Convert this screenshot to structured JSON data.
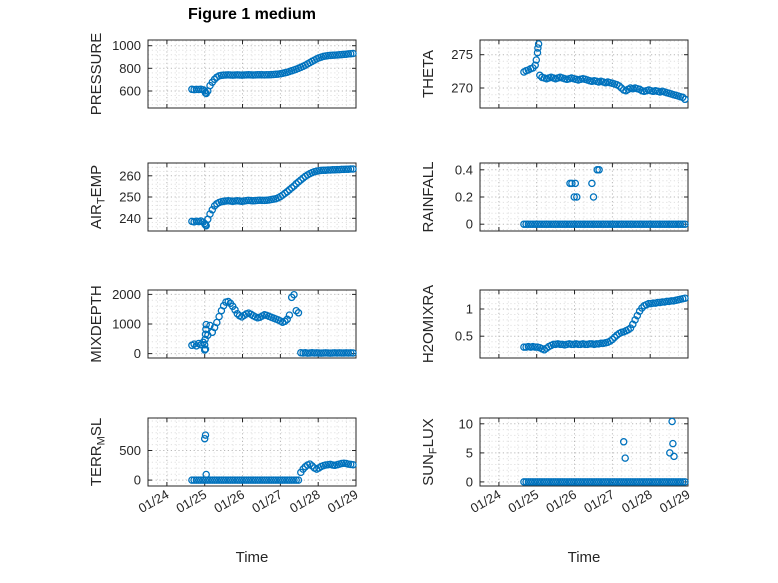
{
  "figure": {
    "title": "Figure 1 medium",
    "xlabel": "Time",
    "marker_color": "#0072BD",
    "axis_color": "#262626",
    "grid_color": "#b8b8b8",
    "minor_grid_color": "#e0e0e0"
  },
  "chart_data": {
    "type": "scatter",
    "marker": "open-circle",
    "x_axis": {
      "label": "Time",
      "xlim": [
        23.5,
        29.0
      ],
      "xticks": [
        24,
        25,
        26,
        27,
        28,
        29
      ],
      "xtick_labels": [
        "01/24",
        "01/25",
        "01/26",
        "01/27",
        "01/28",
        "01/29"
      ],
      "minor_x_step": 0.25
    },
    "x_shared": [
      24.66,
      24.72,
      24.78,
      24.84,
      24.9,
      24.96,
      25.02,
      25.08,
      25.14,
      25.2,
      25.26,
      25.32,
      25.38,
      25.44,
      25.5,
      25.56,
      25.62,
      25.68,
      25.74,
      25.8,
      25.86,
      25.92,
      25.98,
      26.04,
      26.1,
      26.16,
      26.22,
      26.28,
      26.34,
      26.4,
      26.46,
      26.52,
      26.58,
      26.64,
      26.7,
      26.76,
      26.82,
      26.88,
      26.94,
      27.0,
      27.06,
      27.12,
      27.18,
      27.24,
      27.3,
      27.36,
      27.42,
      27.48,
      27.54,
      27.6,
      27.66,
      27.72,
      27.78,
      27.84,
      27.9,
      27.96,
      28.02,
      28.08,
      28.14,
      28.2,
      28.26,
      28.32,
      28.38,
      28.44,
      28.5,
      28.56,
      28.62,
      28.68,
      28.74,
      28.8,
      28.86,
      28.92
    ],
    "subplots": [
      {
        "name": "PRESSURE",
        "ylabel_parts": [
          {
            "t": "PRESSURE"
          }
        ],
        "ylim": [
          450,
          1050
        ],
        "yticks": [
          600,
          800,
          1000
        ],
        "ytick_labels": [
          "600",
          "800",
          "1000"
        ],
        "minor_y_step": 40,
        "show_x_ticks": false,
        "y": [
          615,
          612,
          614,
          613,
          615,
          610,
          583,
          600,
          648,
          678,
          703,
          722,
          733,
          738,
          740,
          741,
          742,
          741,
          740,
          741,
          742,
          741,
          740,
          741,
          742,
          743,
          742,
          741,
          742,
          743,
          744,
          743,
          742,
          743,
          744,
          745,
          746,
          747,
          749,
          752,
          756,
          761,
          766,
          772,
          778,
          785,
          792,
          800,
          809,
          818,
          828,
          839,
          851,
          862,
          873,
          883,
          892,
          899,
          905,
          909,
          912,
          914,
          916,
          917,
          918,
          920,
          921,
          923,
          925,
          927,
          929,
          931
        ],
        "extra_points": [
          [
            25.0,
            600
          ],
          [
            25.04,
            578
          ]
        ]
      },
      {
        "name": "THETA",
        "ylabel_parts": [
          {
            "t": "THETA"
          }
        ],
        "ylim": [
          267,
          277.2
        ],
        "yticks": [
          270,
          275
        ],
        "ytick_labels": [
          "270",
          "275"
        ],
        "minor_y_step": 1,
        "show_x_ticks": false,
        "y": [
          272.4,
          272.6,
          272.7,
          272.9,
          273.0,
          273.4,
          275.3,
          271.9,
          271.6,
          271.5,
          271.4,
          271.5,
          271.6,
          271.5,
          271.4,
          271.5,
          271.6,
          271.5,
          271.4,
          271.3,
          271.4,
          271.5,
          271.4,
          271.3,
          271.2,
          271.3,
          271.4,
          271.3,
          271.2,
          271.1,
          271.0,
          271.1,
          271.0,
          270.9,
          271.0,
          270.9,
          270.8,
          270.9,
          270.8,
          270.7,
          270.6,
          270.5,
          270.3,
          270.0,
          269.7,
          269.6,
          269.8,
          270.0,
          269.9,
          270.0,
          269.9,
          269.8,
          269.6,
          269.5,
          269.6,
          269.7,
          269.6,
          269.5,
          269.6,
          269.5,
          269.4,
          269.5,
          269.4,
          269.3,
          269.2,
          269.1,
          269.0,
          268.9,
          268.8,
          268.7,
          268.6,
          268.3
        ],
        "extra_points": [
          [
            24.99,
            274.2
          ],
          [
            25.03,
            276.0
          ],
          [
            25.05,
            276.6
          ]
        ]
      },
      {
        "name": "AIR_TEMP",
        "ylabel_parts": [
          {
            "t": "AIR"
          },
          {
            "t": "T",
            "sub": true
          },
          {
            "t": "EMP"
          }
        ],
        "ylim": [
          234,
          266
        ],
        "yticks": [
          240,
          250,
          260
        ],
        "ytick_labels": [
          "240",
          "250",
          "260"
        ],
        "minor_y_step": 2,
        "show_x_ticks": false,
        "y": [
          238.5,
          238.3,
          238.6,
          238.4,
          238.7,
          238.2,
          236.8,
          239.5,
          242.0,
          244.0,
          245.8,
          246.8,
          247.4,
          247.8,
          248.0,
          248.1,
          248.2,
          248.1,
          248.0,
          248.1,
          248.2,
          248.1,
          248.0,
          248.1,
          248.3,
          248.4,
          248.3,
          248.2,
          248.3,
          248.4,
          248.5,
          248.4,
          248.4,
          248.5,
          248.6,
          248.8,
          249.0,
          249.2,
          249.6,
          250.2,
          250.9,
          251.7,
          252.5,
          253.4,
          254.3,
          255.2,
          256.2,
          257.1,
          258.0,
          258.9,
          259.7,
          260.4,
          261.0,
          261.5,
          261.9,
          262.2,
          262.4,
          262.5,
          262.6,
          262.6,
          262.7,
          262.7,
          262.8,
          262.8,
          262.9,
          262.9,
          263.0,
          263.0,
          263.1,
          263.1,
          263.2,
          263.2
        ],
        "extra_points": [
          [
            25.0,
            237.5
          ],
          [
            25.04,
            236.5
          ]
        ]
      },
      {
        "name": "RAINFALL",
        "ylabel_parts": [
          {
            "t": "RAINFALL"
          }
        ],
        "ylim": [
          -0.05,
          0.45
        ],
        "yticks": [
          0,
          0.2,
          0.4
        ],
        "ytick_labels": [
          "0",
          "0.2",
          "0.4"
        ],
        "minor_y_step": 0.04,
        "show_x_ticks": false,
        "y": [
          0,
          0,
          0,
          0,
          0,
          0,
          0,
          0,
          0,
          0,
          0,
          0,
          0,
          0,
          0,
          0,
          0,
          0,
          0,
          0,
          0,
          0,
          0,
          0,
          0,
          0,
          0,
          0,
          0,
          0,
          0,
          0,
          0,
          0,
          0,
          0,
          0,
          0,
          0,
          0,
          0,
          0,
          0,
          0,
          0,
          0,
          0,
          0,
          0,
          0,
          0,
          0,
          0,
          0,
          0,
          0,
          0,
          0,
          0,
          0,
          0,
          0,
          0,
          0,
          0,
          0,
          0,
          0,
          0,
          0,
          0,
          0
        ],
        "extra_points": [
          [
            25.88,
            0.3
          ],
          [
            25.93,
            0.3
          ],
          [
            25.99,
            0.2
          ],
          [
            26.02,
            0.3
          ],
          [
            26.06,
            0.2
          ],
          [
            26.46,
            0.3
          ],
          [
            26.5,
            0.2
          ],
          [
            26.6,
            0.4
          ],
          [
            26.65,
            0.4
          ]
        ]
      },
      {
        "name": "MIXDEPTH",
        "ylabel_parts": [
          {
            "t": "MIXDEPTH"
          }
        ],
        "ylim": [
          -150,
          2150
        ],
        "yticks": [
          0,
          1000,
          2000
        ],
        "ytick_labels": [
          "0",
          "1000",
          "2000"
        ],
        "minor_y_step": 200,
        "show_x_ticks": false,
        "y": [
          280,
          320,
          260,
          340,
          300,
          380,
          150,
          620,
          950,
          720,
          880,
          1050,
          1250,
          1450,
          1620,
          1740,
          1760,
          1700,
          1600,
          1480,
          1350,
          1280,
          1240,
          1290,
          1340,
          1370,
          1330,
          1280,
          1240,
          1210,
          1230,
          1270,
          1310,
          1290,
          1260,
          1230,
          1200,
          1170,
          1140,
          1100,
          1060,
          1090,
          1160,
          1300,
          1900,
          1990,
          1450,
          1380,
          30,
          20,
          25,
          15,
          20,
          25,
          18,
          22,
          20,
          15,
          18,
          22,
          20,
          17,
          20,
          23,
          19,
          21,
          20,
          18,
          21,
          19,
          22,
          20
        ],
        "extra_points": [
          [
            25.0,
            120
          ],
          [
            25.0,
            300
          ],
          [
            25.01,
            480
          ],
          [
            25.02,
            650
          ],
          [
            25.03,
            820
          ],
          [
            25.04,
            980
          ]
        ]
      },
      {
        "name": "H2OMIXRA",
        "ylabel_parts": [
          {
            "t": "H2OMIXRA"
          }
        ],
        "ylim": [
          0.1,
          1.35
        ],
        "yticks": [
          0.5,
          1
        ],
        "ytick_labels": [
          "0.5",
          "1"
        ],
        "minor_y_step": 0.1,
        "show_x_ticks": false,
        "y": [
          0.3,
          0.3,
          0.31,
          0.3,
          0.31,
          0.3,
          0.3,
          0.29,
          0.27,
          0.25,
          0.28,
          0.31,
          0.33,
          0.35,
          0.35,
          0.36,
          0.35,
          0.35,
          0.34,
          0.35,
          0.36,
          0.35,
          0.35,
          0.36,
          0.35,
          0.35,
          0.36,
          0.35,
          0.35,
          0.36,
          0.36,
          0.35,
          0.36,
          0.36,
          0.37,
          0.37,
          0.38,
          0.39,
          0.41,
          0.44,
          0.48,
          0.52,
          0.55,
          0.57,
          0.58,
          0.6,
          0.62,
          0.65,
          0.72,
          0.8,
          0.88,
          0.96,
          1.02,
          1.06,
          1.08,
          1.1,
          1.1,
          1.11,
          1.11,
          1.12,
          1.12,
          1.13,
          1.13,
          1.14,
          1.14,
          1.15,
          1.15,
          1.16,
          1.17,
          1.18,
          1.19,
          1.2
        ],
        "extra_points": []
      },
      {
        "name": "TERR_MSL",
        "ylabel_parts": [
          {
            "t": "TERR"
          },
          {
            "t": "M",
            "sub": true
          },
          {
            "t": "SL"
          }
        ],
        "ylim": [
          -100,
          1050
        ],
        "yticks": [
          0,
          500
        ],
        "ytick_labels": [
          "0",
          "500"
        ],
        "minor_y_step": 100,
        "show_x_ticks": true,
        "y": [
          0,
          0,
          0,
          0,
          0,
          0,
          0,
          0,
          0,
          0,
          0,
          0,
          0,
          0,
          0,
          0,
          0,
          0,
          0,
          0,
          0,
          0,
          0,
          0,
          0,
          0,
          0,
          0,
          0,
          0,
          0,
          0,
          0,
          0,
          0,
          0,
          0,
          0,
          0,
          0,
          0,
          0,
          0,
          0,
          0,
          0,
          0,
          0,
          130,
          185,
          225,
          255,
          270,
          240,
          205,
          185,
          205,
          230,
          245,
          255,
          260,
          265,
          255,
          250,
          260,
          270,
          280,
          285,
          280,
          270,
          265,
          260
        ],
        "extra_points": [
          [
            25.0,
            700
          ],
          [
            25.02,
            760
          ],
          [
            25.04,
            95
          ]
        ]
      },
      {
        "name": "SUN_FLUX",
        "ylabel_parts": [
          {
            "t": "SUN"
          },
          {
            "t": "F",
            "sub": true
          },
          {
            "t": "LUX"
          }
        ],
        "ylim": [
          -0.7,
          11
        ],
        "yticks": [
          0,
          5,
          10
        ],
        "ytick_labels": [
          "0",
          "5",
          "10"
        ],
        "minor_y_step": 1,
        "show_x_ticks": true,
        "y": [
          0,
          0,
          0,
          0,
          0,
          0,
          0,
          0,
          0,
          0,
          0,
          0,
          0,
          0,
          0,
          0,
          0,
          0,
          0,
          0,
          0,
          0,
          0,
          0,
          0,
          0,
          0,
          0,
          0,
          0,
          0,
          0,
          0,
          0,
          0,
          0,
          0,
          0,
          0,
          0,
          0,
          0,
          0,
          0,
          0,
          0,
          0,
          0,
          0,
          0,
          0,
          0,
          0,
          0,
          0,
          0,
          0,
          0,
          0,
          0,
          0,
          0,
          0,
          0,
          0,
          0,
          0,
          0,
          0,
          0,
          0,
          0
        ],
        "extra_points": [
          [
            27.3,
            6.9
          ],
          [
            27.34,
            4.1
          ],
          [
            28.52,
            5.0
          ],
          [
            28.58,
            10.4
          ],
          [
            28.6,
            6.6
          ],
          [
            28.63,
            4.4
          ]
        ]
      }
    ]
  }
}
